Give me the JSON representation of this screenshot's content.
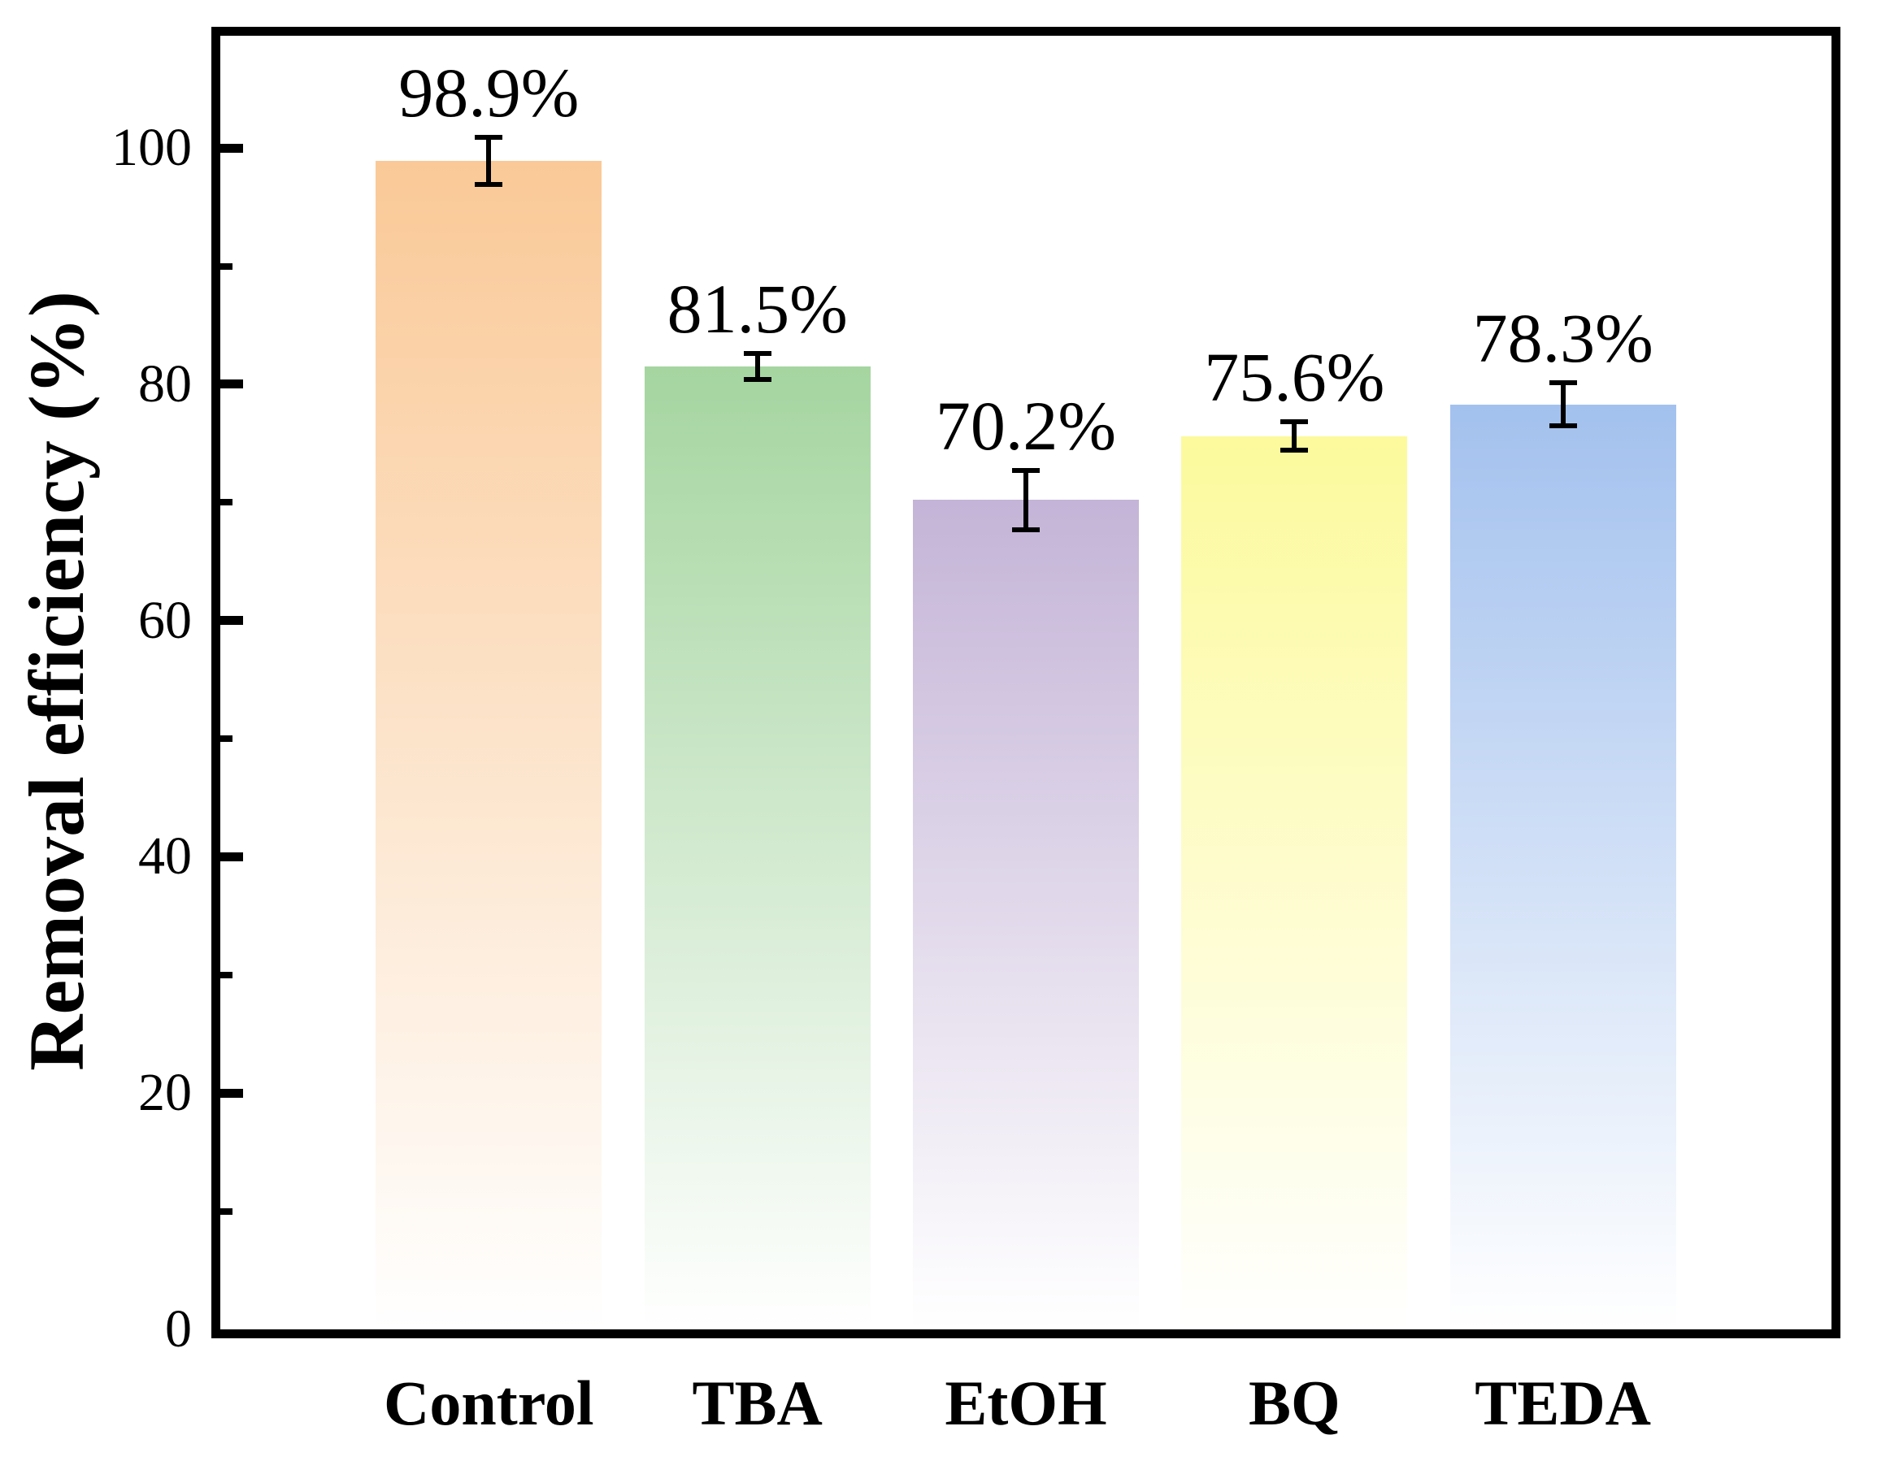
{
  "chart_data": {
    "type": "bar",
    "title": "",
    "xlabel": "",
    "ylabel": "Removal efficiency (%)",
    "categories": [
      "Control",
      "TBA",
      "EtOH",
      "BQ",
      "TEDA"
    ],
    "values": [
      98.9,
      81.5,
      70.2,
      75.6,
      78.3
    ],
    "errors": [
      2.0,
      1.1,
      2.5,
      1.2,
      1.8
    ],
    "value_labels": [
      "98.9%",
      "81.5%",
      "70.2%",
      "75.6%",
      "78.3%"
    ],
    "bar_colors_top": [
      "#FAC997",
      "#A5D5A0",
      "#C4B4D7",
      "#FCFA9C",
      "#A3C1EE"
    ],
    "bar_color_bottom": "#FFFFFF",
    "axis_color": "#000000",
    "ylim": [
      0,
      110
    ],
    "yticks_major": [
      0,
      20,
      40,
      60,
      80,
      100
    ],
    "ytick_labels": [
      "0",
      "20",
      "40",
      "60",
      "80",
      "100"
    ],
    "yticks_minor": [
      10,
      30,
      50,
      70,
      90
    ],
    "grid": false,
    "legend": null,
    "error_bar_style": "caps",
    "tick_direction": "in"
  }
}
